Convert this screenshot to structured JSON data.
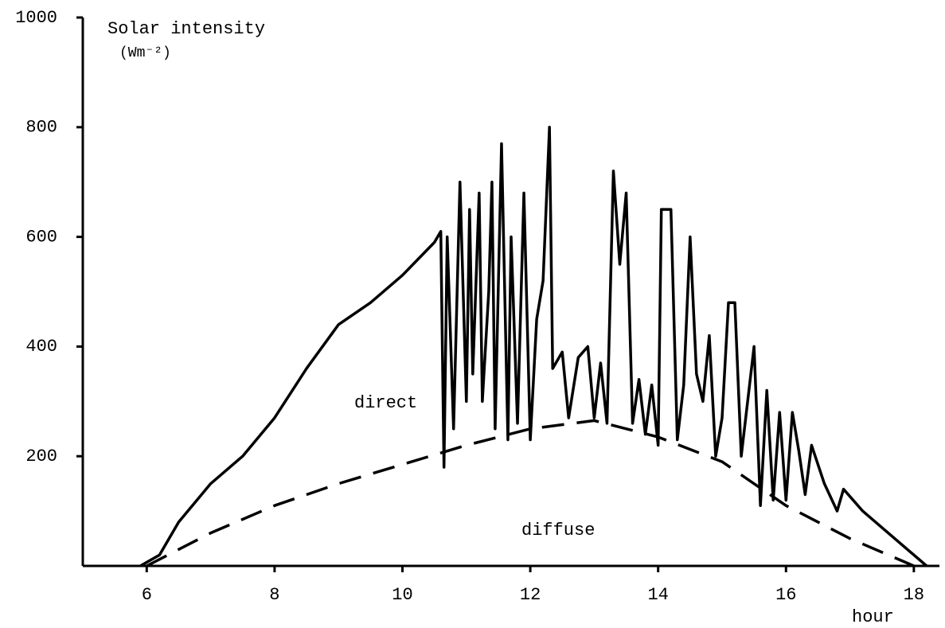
{
  "chart_data": {
    "type": "line",
    "y_label": "Solar intensity",
    "y_unit": "(Wm⁻²)",
    "x_label": "hour",
    "annotations": [
      "direct",
      "diffuse"
    ],
    "xlim": [
      5,
      18.4
    ],
    "xticks": [
      6,
      8,
      10,
      12,
      14,
      16,
      18
    ],
    "ylim": [
      0,
      1000
    ],
    "yticks": [
      200,
      400,
      600,
      800,
      1000
    ],
    "series": [
      {
        "color": "#000000",
        "dash": false,
        "x": [
          5.9,
          6.2,
          6.5,
          7,
          7.5,
          8,
          8.5,
          9,
          9.5,
          10,
          10.5,
          10.6,
          10.65,
          10.7,
          10.8,
          10.9,
          11,
          11.05,
          11.1,
          11.2,
          11.25,
          11.35,
          11.4,
          11.45,
          11.55,
          11.65,
          11.7,
          11.8,
          11.9,
          12,
          12.1,
          12.2,
          12.3,
          12.35,
          12.5,
          12.6,
          12.75,
          12.9,
          13,
          13.1,
          13.2,
          13.3,
          13.4,
          13.5,
          13.6,
          13.7,
          13.8,
          13.9,
          14,
          14.05,
          14.2,
          14.3,
          14.4,
          14.5,
          14.6,
          14.7,
          14.8,
          14.9,
          15,
          15.1,
          15.2,
          15.3,
          15.4,
          15.5,
          15.6,
          15.7,
          15.8,
          15.9,
          16,
          16.1,
          16.2,
          16.3,
          16.4,
          16.6,
          16.8,
          16.9,
          17.2,
          17.6,
          18,
          18.2
        ],
        "values": [
          0,
          20,
          80,
          150,
          200,
          270,
          360,
          440,
          480,
          530,
          590,
          610,
          180,
          600,
          250,
          700,
          300,
          650,
          350,
          680,
          300,
          500,
          700,
          250,
          770,
          230,
          600,
          260,
          680,
          230,
          450,
          520,
          800,
          360,
          390,
          270,
          380,
          400,
          270,
          370,
          260,
          720,
          550,
          680,
          260,
          340,
          240,
          330,
          220,
          650,
          650,
          230,
          330,
          600,
          350,
          300,
          420,
          200,
          270,
          480,
          480,
          200,
          300,
          400,
          110,
          320,
          120,
          280,
          120,
          280,
          210,
          130,
          220,
          150,
          100,
          140,
          100,
          60,
          20,
          0
        ]
      },
      {
        "color": "#000000",
        "dash": true,
        "x": [
          6,
          7,
          8,
          9,
          10,
          11,
          12,
          13,
          14,
          15,
          16,
          17,
          18
        ],
        "values": [
          0,
          60,
          110,
          150,
          185,
          220,
          250,
          265,
          235,
          190,
          110,
          50,
          0
        ]
      }
    ]
  }
}
